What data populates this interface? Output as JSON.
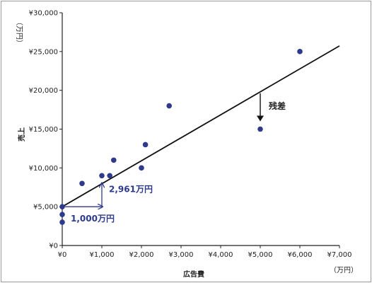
{
  "chart_data": {
    "type": "scatter",
    "xlabel": "広告費",
    "ylabel": "売上",
    "x_unit": "（万円）",
    "y_unit": "（万円）",
    "xlim": [
      0,
      7000
    ],
    "ylim": [
      0,
      30000
    ],
    "x_ticks": [
      0,
      1000,
      2000,
      3000,
      4000,
      5000,
      6000,
      7000
    ],
    "y_ticks": [
      0,
      5000,
      10000,
      15000,
      20000,
      25000,
      30000
    ],
    "x_tick_labels": [
      "¥0",
      "¥1,000",
      "¥2,000",
      "¥3,000",
      "¥4,000",
      "¥5,000",
      "¥6,000",
      "¥7,000"
    ],
    "y_tick_labels": [
      "¥0",
      "¥5,000",
      "¥10,000",
      "¥15,000",
      "¥20,000",
      "¥25,000",
      "¥30,000"
    ],
    "grid": false,
    "points": [
      {
        "x": 0,
        "y": 3000
      },
      {
        "x": 0,
        "y": 4000
      },
      {
        "x": 0,
        "y": 5000
      },
      {
        "x": 500,
        "y": 8000
      },
      {
        "x": 1000,
        "y": 9000
      },
      {
        "x": 1200,
        "y": 9000
      },
      {
        "x": 1300,
        "y": 11000
      },
      {
        "x": 2000,
        "y": 10000
      },
      {
        "x": 2100,
        "y": 13000
      },
      {
        "x": 2700,
        "y": 18000
      },
      {
        "x": 5000,
        "y": 15000
      },
      {
        "x": 6000,
        "y": 25000
      }
    ],
    "regression": {
      "intercept": 5000,
      "slope": 2.961,
      "x_range": [
        0,
        7000
      ]
    },
    "annotations": {
      "run_label": "1,000万円",
      "rise_label": "2,961万円",
      "residual_label": "残差"
    },
    "colors": {
      "points": "#2e3a8c",
      "line": "#111111",
      "annotation": "#2e3a8c"
    }
  }
}
